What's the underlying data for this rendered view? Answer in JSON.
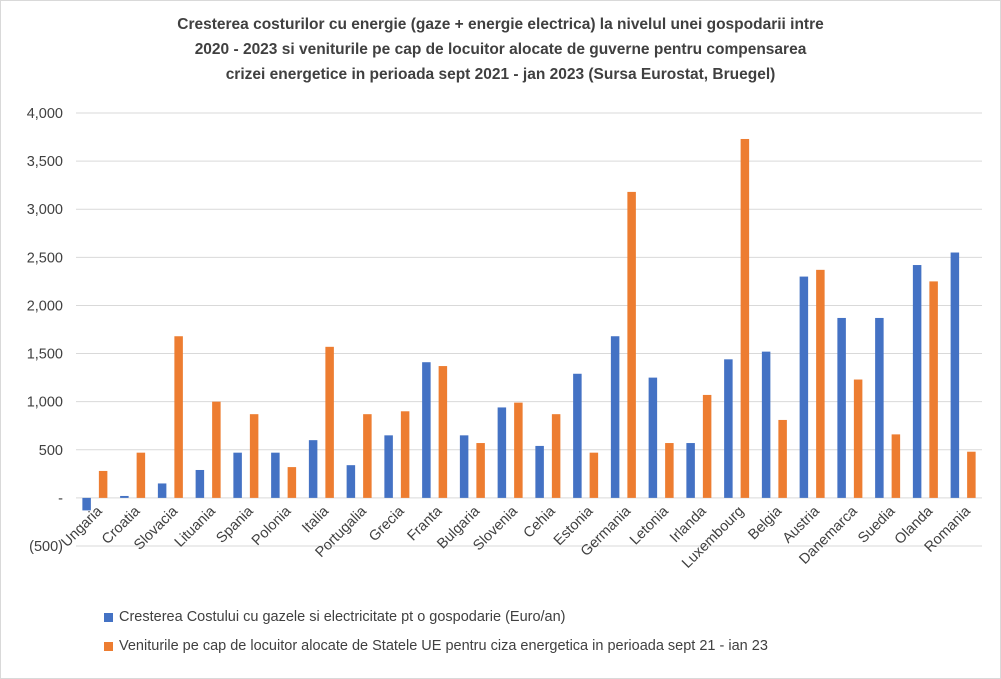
{
  "chart_data": {
    "type": "bar",
    "title_lines": [
      "Cresterea costurilor cu energie (gaze + energie electrica) la nivelul unei gospodarii intre",
      "2020 - 2023 si veniturile pe cap de locuitor alocate de guverne pentru compensarea",
      "crizei energetice in perioada sept 2021 - jan 2023 (Sursa Eurostat, Bruegel)"
    ],
    "categories": [
      "Ungaria",
      "Croatia",
      "Slovacia",
      "Lituania",
      "Spania",
      "Polonia",
      "Italia",
      "Portugalia",
      "Grecia",
      "Franta",
      "Bulgaria",
      "Slovenia",
      "Cehia",
      "Estonia",
      "Germania",
      "Letonia",
      "Irlanda",
      "Luxembourg",
      "Belgia",
      "Austria",
      "Danemarca",
      "Suedia",
      "Olanda",
      "Romania"
    ],
    "series": [
      {
        "name": "Cresterea Costului cu gazele si electricitate pt o gospodarie (Euro/an)",
        "color": "#4472c4",
        "values": [
          -130,
          20,
          150,
          290,
          470,
          470,
          600,
          340,
          650,
          1410,
          650,
          940,
          540,
          1290,
          1680,
          1250,
          570,
          1440,
          1520,
          2300,
          1870,
          1870,
          2420,
          2550
        ]
      },
      {
        "name": "Veniturile pe cap de locuitor alocate de Statele UE pentru ciza energetica in perioada sept 21 - ian 23",
        "color": "#ed7d31",
        "values": [
          280,
          470,
          1680,
          1000,
          870,
          320,
          1570,
          870,
          900,
          1370,
          570,
          990,
          870,
          470,
          3180,
          570,
          1070,
          3730,
          810,
          2370,
          1230,
          660,
          2250,
          480
        ]
      }
    ],
    "ylim": [
      -500,
      4000
    ],
    "yticks": [
      -500,
      0,
      500,
      1000,
      1500,
      2000,
      2500,
      3000,
      3500,
      4000
    ],
    "ytick_labels": [
      "(500)",
      "-",
      "500",
      "1,000",
      "1,500",
      "2,000",
      "2,500",
      "3,000",
      "3,500",
      "4,000"
    ],
    "grid": true,
    "legend_position": "bottom"
  }
}
